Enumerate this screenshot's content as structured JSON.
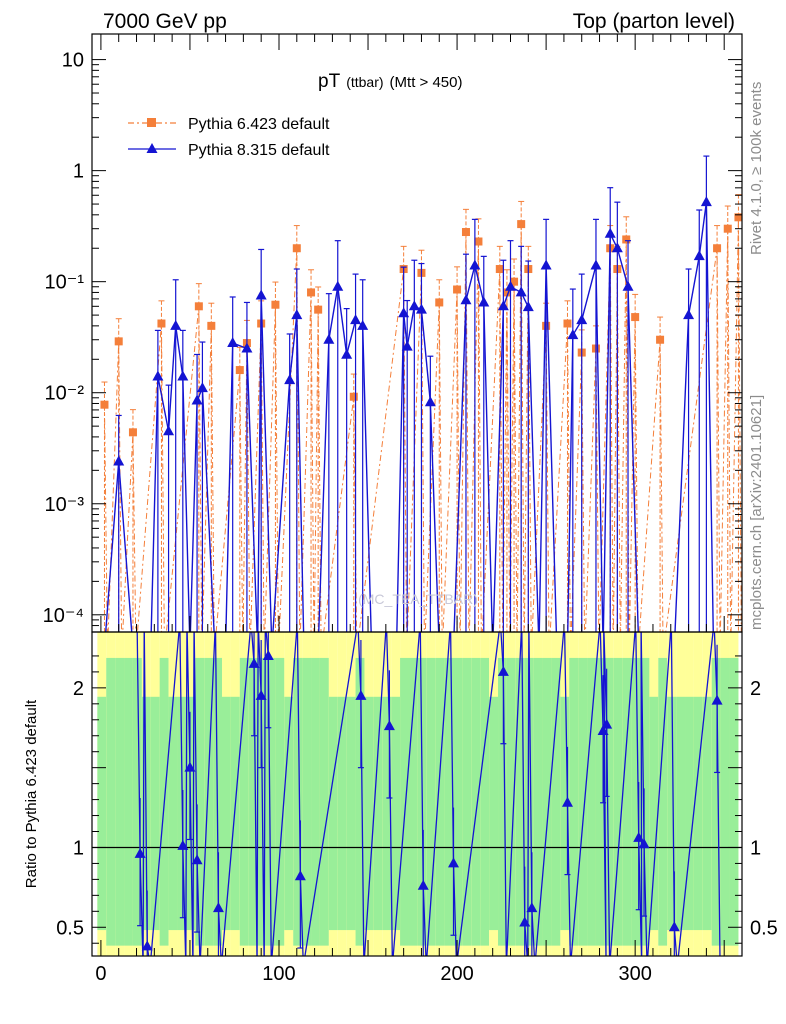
{
  "header": {
    "left": "7000 GeV pp",
    "right": "Top (parton level)"
  },
  "side_labels": {
    "rivet": "Rivet 4.1.0, ≥ 100k events",
    "mcplots": "mcplots.cern.ch [arXiv:2401.10621]"
  },
  "watermark": "(MC_TEA_TTBAR)",
  "colors": {
    "pythia6": "#f47f3a",
    "pythia8": "#1414d2",
    "band_green": "#99ee99",
    "band_yellow": "#ffff99"
  },
  "chart_data": [
    {
      "type": "line",
      "title_main": "pT",
      "title_sub1": "(ttbar)",
      "title_sub2": "(Mtt > 450)",
      "yscale": "log",
      "ylim": [
        7e-05,
        17
      ],
      "xlim": [
        -5,
        360
      ],
      "yticks": [
        {
          "value": 10,
          "label": "10"
        },
        {
          "value": 1,
          "label": "1"
        },
        {
          "value": 0.1,
          "label": "10⁻¹"
        },
        {
          "value": 0.01,
          "label": "10⁻²"
        },
        {
          "value": 0.001,
          "label": "10⁻³"
        },
        {
          "value": 0.0001,
          "label": "10⁻⁴"
        }
      ],
      "legend_position": "top-left",
      "series": [
        {
          "name": "Pythia 6.423 default",
          "marker": "square",
          "style": "dash-dot",
          "points": [
            {
              "x": 2,
              "y": 0.0078
            },
            {
              "x": 10,
              "y": 0.029
            },
            {
              "x": 18,
              "y": 0.0044
            },
            {
              "x": 34,
              "y": 0.042
            },
            {
              "x": 55,
              "y": 0.06
            },
            {
              "x": 62,
              "y": 0.04
            },
            {
              "x": 78,
              "y": 0.016
            },
            {
              "x": 82,
              "y": 0.028
            },
            {
              "x": 90,
              "y": 0.042
            },
            {
              "x": 98,
              "y": 0.062
            },
            {
              "x": 110,
              "y": 0.2
            },
            {
              "x": 118,
              "y": 0.08
            },
            {
              "x": 122,
              "y": 0.056
            },
            {
              "x": 142,
              "y": 0.0092
            },
            {
              "x": 170,
              "y": 0.13
            },
            {
              "x": 180,
              "y": 0.12
            },
            {
              "x": 190,
              "y": 0.065
            },
            {
              "x": 200,
              "y": 0.085
            },
            {
              "x": 205,
              "y": 0.28
            },
            {
              "x": 212,
              "y": 0.23
            },
            {
              "x": 224,
              "y": 0.13
            },
            {
              "x": 228,
              "y": 0.08
            },
            {
              "x": 232,
              "y": 0.1
            },
            {
              "x": 236,
              "y": 0.33
            },
            {
              "x": 240,
              "y": 0.13
            },
            {
              "x": 250,
              "y": 0.04
            },
            {
              "x": 262,
              "y": 0.042
            },
            {
              "x": 270,
              "y": 0.023
            },
            {
              "x": 278,
              "y": 0.025
            },
            {
              "x": 286,
              "y": 0.2
            },
            {
              "x": 290,
              "y": 0.13
            },
            {
              "x": 295,
              "y": 0.24
            },
            {
              "x": 300,
              "y": 0.048
            },
            {
              "x": 314,
              "y": 0.03
            },
            {
              "x": 346,
              "y": 0.2
            },
            {
              "x": 352,
              "y": 0.3
            },
            {
              "x": 358,
              "y": 0.38
            }
          ]
        },
        {
          "name": "Pythia 8.315 default",
          "marker": "triangle",
          "style": "solid",
          "points": [
            {
              "x": 2,
              "y": 5e-05
            },
            {
              "x": 10,
              "y": 0.0024
            },
            {
              "x": 18,
              "y": 5e-05
            },
            {
              "x": 28,
              "y": 5e-05
            },
            {
              "x": 32,
              "y": 0.014
            },
            {
              "x": 38,
              "y": 0.0045
            },
            {
              "x": 42,
              "y": 0.04
            },
            {
              "x": 46,
              "y": 0.014
            },
            {
              "x": 50,
              "y": 5e-05
            },
            {
              "x": 54,
              "y": 0.0085
            },
            {
              "x": 57,
              "y": 0.011
            },
            {
              "x": 64,
              "y": 5e-05
            },
            {
              "x": 70,
              "y": 5e-05
            },
            {
              "x": 74,
              "y": 0.028
            },
            {
              "x": 82,
              "y": 0.025
            },
            {
              "x": 88,
              "y": 5e-05
            },
            {
              "x": 90,
              "y": 0.075
            },
            {
              "x": 96,
              "y": 5e-05
            },
            {
              "x": 106,
              "y": 0.013
            },
            {
              "x": 110,
              "y": 0.05
            },
            {
              "x": 114,
              "y": 5e-05
            },
            {
              "x": 122,
              "y": 5e-05
            },
            {
              "x": 128,
              "y": 0.03
            },
            {
              "x": 133,
              "y": 0.09
            },
            {
              "x": 138,
              "y": 0.022
            },
            {
              "x": 143,
              "y": 0.045
            },
            {
              "x": 147,
              "y": 0.04
            },
            {
              "x": 152,
              "y": 5e-05
            },
            {
              "x": 158,
              "y": 5e-05
            },
            {
              "x": 166,
              "y": 5e-05
            },
            {
              "x": 170,
              "y": 0.052
            },
            {
              "x": 172,
              "y": 0.026
            },
            {
              "x": 176,
              "y": 0.06
            },
            {
              "x": 180,
              "y": 0.056
            },
            {
              "x": 185,
              "y": 0.0082
            },
            {
              "x": 190,
              "y": 5e-05
            },
            {
              "x": 198,
              "y": 5e-05
            },
            {
              "x": 205,
              "y": 0.068
            },
            {
              "x": 210,
              "y": 0.14
            },
            {
              "x": 215,
              "y": 0.065
            },
            {
              "x": 220,
              "y": 5e-05
            },
            {
              "x": 226,
              "y": 0.06
            },
            {
              "x": 230,
              "y": 0.09
            },
            {
              "x": 236,
              "y": 0.08
            },
            {
              "x": 240,
              "y": 0.059
            },
            {
              "x": 246,
              "y": 5e-05
            },
            {
              "x": 250,
              "y": 0.14
            },
            {
              "x": 256,
              "y": 5e-05
            },
            {
              "x": 262,
              "y": 5e-05
            },
            {
              "x": 265,
              "y": 0.033
            },
            {
              "x": 270,
              "y": 0.045
            },
            {
              "x": 278,
              "y": 0.14
            },
            {
              "x": 282,
              "y": 5e-05
            },
            {
              "x": 286,
              "y": 0.27
            },
            {
              "x": 290,
              "y": 0.2
            },
            {
              "x": 296,
              "y": 0.09
            },
            {
              "x": 302,
              "y": 5e-05
            },
            {
              "x": 310,
              "y": 5e-05
            },
            {
              "x": 318,
              "y": 5e-05
            },
            {
              "x": 322,
              "y": 5e-05
            },
            {
              "x": 330,
              "y": 0.05
            },
            {
              "x": 336,
              "y": 0.17
            },
            {
              "x": 340,
              "y": 0.52
            },
            {
              "x": 344,
              "y": 5e-05
            },
            {
              "x": 350,
              "y": 5e-05
            },
            {
              "x": 356,
              "y": 5e-05
            }
          ]
        }
      ]
    },
    {
      "type": "line",
      "role": "ratio",
      "ylabel": "Ratio to Pythia 6.423 default",
      "ylim": [
        0.32,
        2.35
      ],
      "xlim": [
        -5,
        360
      ],
      "xticks": [
        0,
        100,
        200,
        300
      ],
      "yticks": [
        {
          "value": 0.5,
          "label": "0.5"
        },
        {
          "value": 1,
          "label": "1"
        },
        {
          "value": 2,
          "label": "2"
        }
      ],
      "reference": 1,
      "series": [
        {
          "name": "Pythia 8.315 default",
          "marker": "triangle",
          "points": [
            {
              "x": 22,
              "y": 0.96
            },
            {
              "x": 26,
              "y": 0.38
            },
            {
              "x": 46,
              "y": 1.01
            },
            {
              "x": 50,
              "y": 1.5
            },
            {
              "x": 54,
              "y": 0.92
            },
            {
              "x": 66,
              "y": 0.62
            },
            {
              "x": 86,
              "y": 2.15
            },
            {
              "x": 90,
              "y": 1.95
            },
            {
              "x": 94,
              "y": 2.2
            },
            {
              "x": 112,
              "y": 0.82
            },
            {
              "x": 146,
              "y": 1.95
            },
            {
              "x": 162,
              "y": 1.76
            },
            {
              "x": 181,
              "y": 0.76
            },
            {
              "x": 198,
              "y": 0.9
            },
            {
              "x": 226,
              "y": 2.1
            },
            {
              "x": 238,
              "y": 0.53
            },
            {
              "x": 242,
              "y": 0.62
            },
            {
              "x": 262,
              "y": 1.28
            },
            {
              "x": 282,
              "y": 1.73
            },
            {
              "x": 284,
              "y": 1.77
            },
            {
              "x": 302,
              "y": 1.06
            },
            {
              "x": 305,
              "y": 1.02
            },
            {
              "x": 322,
              "y": 0.5
            },
            {
              "x": 346,
              "y": 1.92
            }
          ]
        }
      ]
    }
  ]
}
